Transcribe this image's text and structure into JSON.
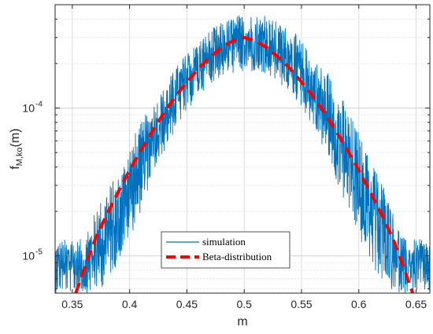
{
  "chart_data": {
    "type": "line",
    "title": "",
    "xlabel": "m",
    "ylabel": "f",
    "ylabel_sub": "M,ko",
    "ylabel_suffix": "(m)",
    "xlim": [
      0.335,
      0.662
    ],
    "ylim": [
      5.6e-06,
      0.0005
    ],
    "yscale": "log",
    "grid": true,
    "x_ticks": [
      0.35,
      0.4,
      0.45,
      0.5,
      0.55,
      0.6,
      0.65
    ],
    "x_tick_labels": [
      "0.35",
      "0.4",
      "0.45",
      "0.5",
      "0.55",
      "0.6",
      "0.65"
    ],
    "y_ticks": [
      {
        "value": 1e-05,
        "mantissa": "10",
        "exp": "-5"
      },
      {
        "value": 0.0001,
        "mantissa": "10",
        "exp": "-4"
      }
    ],
    "legend_position": "lower-center",
    "series": [
      {
        "name": "simulation",
        "style": "noisy-line",
        "color": "#0072BD",
        "envelope": {
          "x": [
            0.335,
            0.35,
            0.36,
            0.37,
            0.38,
            0.39,
            0.4,
            0.41,
            0.42,
            0.43,
            0.44,
            0.45,
            0.46,
            0.47,
            0.48,
            0.49,
            0.5,
            0.51,
            0.52,
            0.53,
            0.54,
            0.55,
            0.56,
            0.57,
            0.58,
            0.59,
            0.6,
            0.61,
            0.62,
            0.63,
            0.64,
            0.65,
            0.662
          ],
          "upper": [
            1.3e-05,
            1.3e-05,
            1.3e-05,
            2e-05,
            3e-05,
            3.5e-05,
            6e-05,
            8e-05,
            0.00011,
            0.00014,
            0.00019,
            0.00024,
            0.00029,
            0.00034,
            0.00038,
            0.00042,
            0.00044,
            0.00044,
            0.00042,
            0.00038,
            0.00035,
            0.00029,
            0.00022,
            0.00019,
            0.00015,
            0.0001,
            7e-05,
            4.5e-05,
            3.5e-05,
            2e-05,
            1.3e-05,
            1.3e-05,
            1.3e-05
          ],
          "lower": [
            5.6e-06,
            5.6e-06,
            5.6e-06,
            5.6e-06,
            6.5e-06,
            9e-06,
            1.3e-05,
            2e-05,
            3.5e-05,
            5e-05,
            7e-05,
            9.5e-05,
            0.00012,
            0.000145,
            0.00016,
            0.00017,
            0.000175,
            0.00017,
            0.00016,
            0.000145,
            0.000125,
            0.0001,
            7.5e-05,
            5e-05,
            3.2e-05,
            2e-05,
            1.3e-05,
            9e-06,
            6.5e-06,
            5.6e-06,
            5.6e-06,
            5.6e-06,
            5.6e-06
          ]
        }
      },
      {
        "name": "Beta-distribution",
        "style": "dashed",
        "color": "#FF0000",
        "x": [
          0.353,
          0.36,
          0.37,
          0.38,
          0.39,
          0.4,
          0.41,
          0.42,
          0.43,
          0.44,
          0.45,
          0.46,
          0.47,
          0.48,
          0.49,
          0.5,
          0.51,
          0.52,
          0.53,
          0.54,
          0.55,
          0.56,
          0.57,
          0.58,
          0.59,
          0.6,
          0.61,
          0.62,
          0.63,
          0.64,
          0.647
        ],
        "values": [
          5.6e-06,
          8e-06,
          1.3e-05,
          1.9e-05,
          2.7e-05,
          3.8e-05,
          5.2e-05,
          7e-05,
          9.3e-05,
          0.00012,
          0.00015,
          0.000185,
          0.00022,
          0.000255,
          0.000285,
          0.0003,
          0.000285,
          0.000255,
          0.00022,
          0.000185,
          0.00015,
          0.00012,
          9.3e-05,
          7e-05,
          5.2e-05,
          3.8e-05,
          2.7e-05,
          1.9e-05,
          1.3e-05,
          8e-06,
          5.6e-06
        ]
      }
    ]
  }
}
